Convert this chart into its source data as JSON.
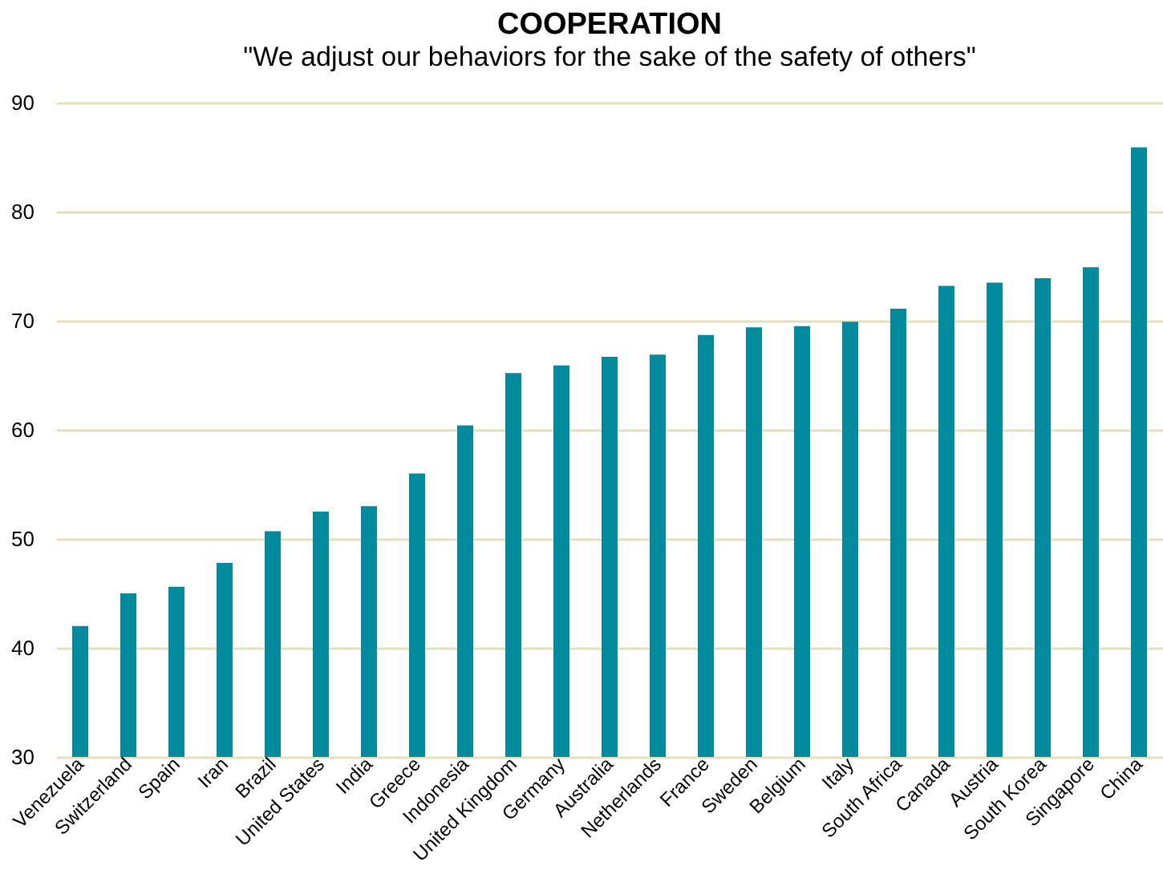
{
  "chart_data": {
    "type": "bar",
    "title": "COOPERATION",
    "subtitle": "\"We adjust our behaviors for the sake of the safety of others\"",
    "categories": [
      "Venezuela",
      "Switzerland",
      "Spain",
      "Iran",
      "Brazil",
      "United States",
      "India",
      "Greece",
      "Indonesia",
      "United Kingdom",
      "Germany",
      "Australia",
      "Netherlands",
      "France",
      "Sweden",
      "Belgium",
      "Italy",
      "South Africa",
      "Canada",
      "Austria",
      "South Korea",
      "Singapore",
      "China"
    ],
    "values": [
      42,
      45,
      45.6,
      47.8,
      50.7,
      52.5,
      53,
      56,
      60.4,
      65.2,
      65.9,
      66.7,
      66.9,
      68.7,
      69.4,
      69.5,
      69.9,
      71.1,
      73.2,
      73.5,
      73.9,
      74.9,
      85.9
    ],
    "color": "#008a9e",
    "ylim": [
      30,
      90
    ],
    "yticks": [
      30,
      40,
      50,
      60,
      70,
      80,
      90
    ],
    "grid": "y"
  }
}
